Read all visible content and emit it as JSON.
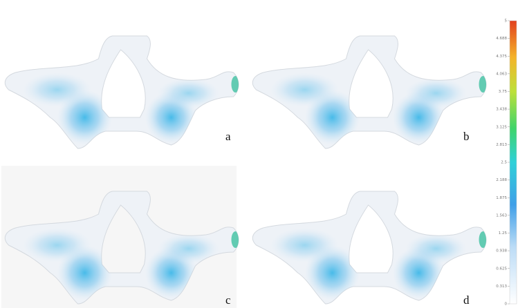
{
  "panels": [
    {
      "label": "a"
    },
    {
      "label": "b"
    },
    {
      "label": "c"
    },
    {
      "label": "d"
    }
  ],
  "colorbar": {
    "range": [
      0,
      5
    ],
    "ticks": [
      5,
      4.688,
      4.375,
      4.063,
      3.75,
      3.438,
      3.125,
      2.813,
      2.5,
      2.188,
      1.875,
      1.563,
      1.25,
      0.938,
      0.625,
      0.313,
      0
    ]
  }
}
